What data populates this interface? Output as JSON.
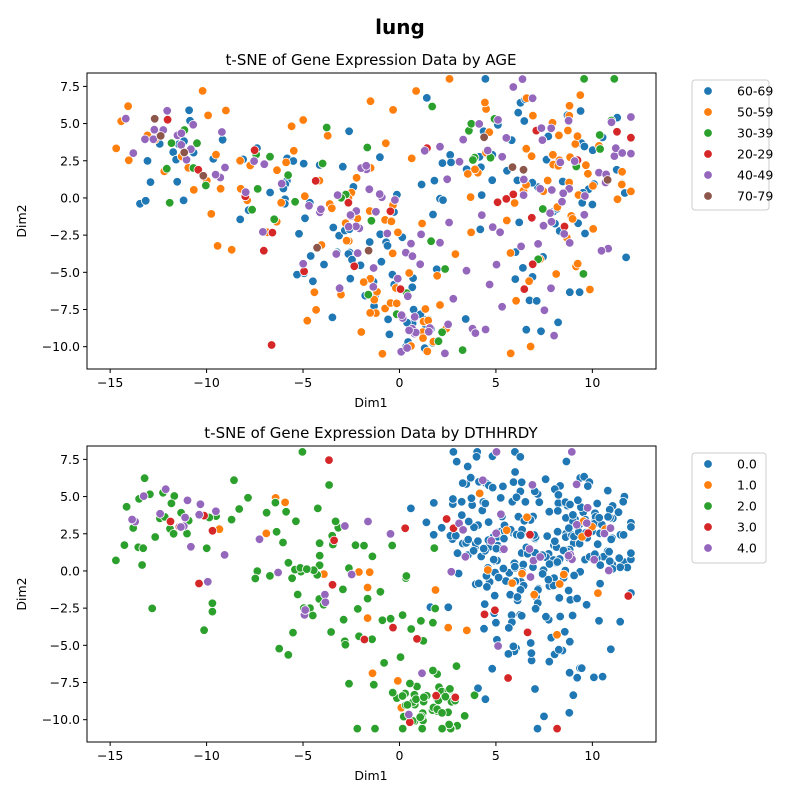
{
  "figure": {
    "suptitle": "lung"
  },
  "chart_data": [
    {
      "type": "scatter",
      "title": "t-SNE of Gene Expression Data by AGE",
      "xlabel": "Dim1",
      "ylabel": "Dim2",
      "xlim": [
        -16.2,
        13.3
      ],
      "ylim": [
        -11.5,
        8.4
      ],
      "xticks": [
        -15,
        -10,
        -5,
        0,
        5,
        10
      ],
      "yticks": [
        -10.0,
        -7.5,
        -5.0,
        -2.5,
        0.0,
        2.5,
        5.0,
        7.5
      ],
      "legend_position": "outside-upper-right",
      "series": [
        {
          "name": "60-69",
          "color": "#1f77b4",
          "count": 155
        },
        {
          "name": "50-59",
          "color": "#ff7f0e",
          "count": 145
        },
        {
          "name": "30-39",
          "color": "#2ca02c",
          "count": 45
        },
        {
          "name": "20-29",
          "color": "#d62728",
          "count": 25
        },
        {
          "name": "40-49",
          "color": "#9467bd",
          "count": 130
        },
        {
          "name": "70-79",
          "color": "#8c564b",
          "count": 10
        }
      ]
    },
    {
      "type": "scatter",
      "title": "t-SNE of Gene Expression Data by DTHHRDY",
      "xlabel": "Dim1",
      "ylabel": "Dim2",
      "xlim": [
        -16.2,
        13.3
      ],
      "ylim": [
        -11.5,
        8.4
      ],
      "xticks": [
        -15,
        -10,
        -5,
        0,
        5,
        10
      ],
      "yticks": [
        -10.0,
        -7.5,
        -5.0,
        -2.5,
        0.0,
        2.5,
        5.0,
        7.5
      ],
      "legend_position": "outside-upper-right",
      "series": [
        {
          "name": "0.0",
          "color": "#1f77b4",
          "count": 300
        },
        {
          "name": "1.0",
          "color": "#ff7f0e",
          "count": 30
        },
        {
          "name": "2.0",
          "color": "#2ca02c",
          "count": 150
        },
        {
          "name": "3.0",
          "color": "#d62728",
          "count": 25
        },
        {
          "name": "4.0",
          "color": "#9467bd",
          "count": 55
        }
      ]
    }
  ]
}
